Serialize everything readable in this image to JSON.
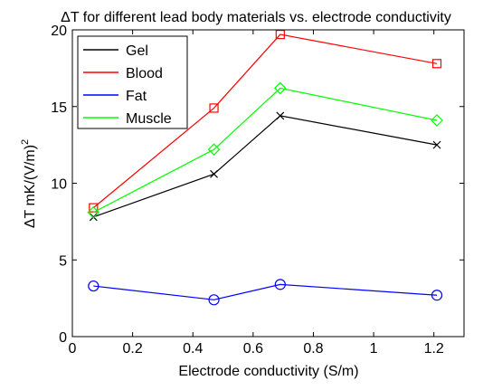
{
  "chart_data": {
    "type": "line",
    "title": "ΔT for different lead body materials vs. electrode conductivity",
    "xlabel": "Electrode conductivity (S/m)",
    "ylabel_main": "ΔT mK/(V/m)",
    "ylabel_sup": "2",
    "xlim": [
      0,
      1.3
    ],
    "ylim": [
      0,
      20
    ],
    "xticks": [
      0,
      0.2,
      0.4,
      0.6,
      0.8,
      1,
      1.2
    ],
    "xtick_labels": [
      "0",
      "0.2",
      "0.4",
      "0.6",
      "0.8",
      "1",
      "1.2"
    ],
    "yticks": [
      0,
      5,
      10,
      15,
      20
    ],
    "ytick_labels": [
      "0",
      "5",
      "10",
      "15",
      "20"
    ],
    "grid": false,
    "legend_position": "top-left",
    "x": [
      0.07,
      0.47,
      0.69,
      1.21
    ],
    "series": [
      {
        "name": "Gel",
        "color": "#000000",
        "marker": "x",
        "values": [
          7.8,
          10.6,
          14.4,
          12.5
        ]
      },
      {
        "name": "Blood",
        "color": "#ff0000",
        "marker": "square",
        "values": [
          8.4,
          14.9,
          19.7,
          17.8
        ]
      },
      {
        "name": "Fat",
        "color": "#0000ff",
        "marker": "circle",
        "values": [
          3.3,
          2.4,
          3.4,
          2.7
        ]
      },
      {
        "name": "Muscle",
        "color": "#00ff00",
        "marker": "diamond",
        "values": [
          8.1,
          12.2,
          16.2,
          14.1
        ]
      }
    ]
  }
}
